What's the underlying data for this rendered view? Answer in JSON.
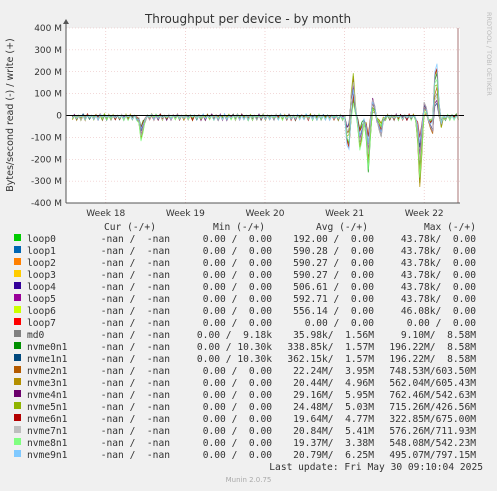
{
  "chart_data": {
    "type": "line",
    "title": "Throughput per device - by month",
    "ylabel": "Bytes/second read (-) / write (+)",
    "watermark": "RRDTOOL / TOBI OETIKER",
    "ylim": [
      -400,
      400
    ],
    "y_unit": "M",
    "y_ticks": [
      "-400 M",
      "-300 M",
      "-200 M",
      "-100 M",
      "0",
      "100 M",
      "200 M",
      "300 M",
      "400 M"
    ],
    "y_tick_values": [
      -400,
      -300,
      -200,
      -100,
      0,
      100,
      200,
      300,
      400
    ],
    "x_ticks": [
      "Week 18",
      "Week 19",
      "Week 20",
      "Week 21",
      "Week 22"
    ],
    "xlim": [
      17.5,
      22.45
    ],
    "x_tick_values": [
      18,
      19,
      20,
      21,
      22
    ],
    "grid": true,
    "legend_placement": "bottom",
    "colors": {
      "background": "#f0f0f0",
      "plot_bg": "#ffffff",
      "grid": "#e6b4b4",
      "axis": "#555555",
      "zero_line": "#000000",
      "now_line": "#aa7777"
    },
    "series": [
      {
        "name": "loop0",
        "color": "#00cc00"
      },
      {
        "name": "loop1",
        "color": "#0066b3"
      },
      {
        "name": "loop2",
        "color": "#ff8000"
      },
      {
        "name": "loop3",
        "color": "#ffcc00"
      },
      {
        "name": "loop4",
        "color": "#330099"
      },
      {
        "name": "loop5",
        "color": "#990099"
      },
      {
        "name": "loop6",
        "color": "#ccff00"
      },
      {
        "name": "loop7",
        "color": "#ff0000"
      },
      {
        "name": "md0",
        "color": "#808080"
      },
      {
        "name": "nvme0n1",
        "color": "#008f00"
      },
      {
        "name": "nvme1n1",
        "color": "#00487d"
      },
      {
        "name": "nvme2n1",
        "color": "#b35a00"
      },
      {
        "name": "nvme3n1",
        "color": "#b38f00"
      },
      {
        "name": "nvme4n1",
        "color": "#6b006b"
      },
      {
        "name": "nvme5n1",
        "color": "#8fb300"
      },
      {
        "name": "nvme6n1",
        "color": "#b30000"
      },
      {
        "name": "nvme7n1",
        "color": "#bebebe"
      },
      {
        "name": "nvme8n1",
        "color": "#80ff80"
      },
      {
        "name": "nvme9n1",
        "color": "#80c9ff"
      }
    ],
    "spikes": [
      {
        "x": 18.45,
        "y": -125
      },
      {
        "x": 21.05,
        "y": -200
      },
      {
        "x": 21.1,
        "y": 240
      },
      {
        "x": 21.2,
        "y": -180
      },
      {
        "x": 21.3,
        "y": -250
      },
      {
        "x": 21.35,
        "y": 100
      },
      {
        "x": 21.45,
        "y": -100
      },
      {
        "x": 21.95,
        "y": -350
      },
      {
        "x": 22.0,
        "y": 80
      },
      {
        "x": 22.1,
        "y": -100
      },
      {
        "x": 22.15,
        "y": 330
      },
      {
        "x": 22.2,
        "y": -60
      }
    ]
  },
  "legend": {
    "headers": {
      "cur": "Cur (-/+)",
      "min": "Min (-/+)",
      "avg": "Avg (-/+)",
      "max": "Max (-/+)"
    },
    "rows": [
      {
        "name": "loop0",
        "cur": "-nan /  -nan",
        "min": "0.00 /  0.00",
        "avg": "192.00 /  0.00",
        "max": "43.78k/  0.00"
      },
      {
        "name": "loop1",
        "cur": "-nan /  -nan",
        "min": "0.00 /  0.00",
        "avg": "590.28 /  0.00",
        "max": "43.78k/  0.00"
      },
      {
        "name": "loop2",
        "cur": "-nan /  -nan",
        "min": "0.00 /  0.00",
        "avg": "590.27 /  0.00",
        "max": "43.78k/  0.00"
      },
      {
        "name": "loop3",
        "cur": "-nan /  -nan",
        "min": "0.00 /  0.00",
        "avg": "590.27 /  0.00",
        "max": "43.78k/  0.00"
      },
      {
        "name": "loop4",
        "cur": "-nan /  -nan",
        "min": "0.00 /  0.00",
        "avg": "506.61 /  0.00",
        "max": "43.78k/  0.00"
      },
      {
        "name": "loop5",
        "cur": "-nan /  -nan",
        "min": "0.00 /  0.00",
        "avg": "592.71 /  0.00",
        "max": "43.78k/  0.00"
      },
      {
        "name": "loop6",
        "cur": "-nan /  -nan",
        "min": "0.00 /  0.00",
        "avg": "556.14 /  0.00",
        "max": "46.08k/  0.00"
      },
      {
        "name": "loop7",
        "cur": "-nan /  -nan",
        "min": "0.00 /  0.00",
        "avg": "0.00 /  0.00",
        "max": "0.00 /  0.00"
      },
      {
        "name": "md0",
        "cur": "-nan /  -nan",
        "min": "0.00 /  9.18k",
        "avg": "35.98k/  1.56M",
        "max": "9.10M/  8.58M"
      },
      {
        "name": "nvme0n1",
        "cur": "-nan /  -nan",
        "min": "0.00 / 10.30k",
        "avg": "338.85k/  1.57M",
        "max": "196.22M/  8.58M"
      },
      {
        "name": "nvme1n1",
        "cur": "-nan /  -nan",
        "min": "0.00 / 10.30k",
        "avg": "362.15k/  1.57M",
        "max": "196.22M/  8.58M"
      },
      {
        "name": "nvme2n1",
        "cur": "-nan /  -nan",
        "min": "0.00 /  0.00",
        "avg": "22.24M/  3.95M",
        "max": "748.53M/603.50M"
      },
      {
        "name": "nvme3n1",
        "cur": "-nan /  -nan",
        "min": "0.00 /  0.00",
        "avg": "20.44M/  4.96M",
        "max": "562.04M/605.43M"
      },
      {
        "name": "nvme4n1",
        "cur": "-nan /  -nan",
        "min": "0.00 /  0.00",
        "avg": "29.16M/  5.95M",
        "max": "762.46M/542.63M"
      },
      {
        "name": "nvme5n1",
        "cur": "-nan /  -nan",
        "min": "0.00 /  0.00",
        "avg": "24.48M/  5.03M",
        "max": "715.26M/426.56M"
      },
      {
        "name": "nvme6n1",
        "cur": "-nan /  -nan",
        "min": "0.00 /  0.00",
        "avg": "19.64M/  4.77M",
        "max": "322.85M/675.00M"
      },
      {
        "name": "nvme7n1",
        "cur": "-nan /  -nan",
        "min": "0.00 /  0.00",
        "avg": "20.84M/  5.41M",
        "max": "576.26M/711.93M"
      },
      {
        "name": "nvme8n1",
        "cur": "-nan /  -nan",
        "min": "0.00 /  0.00",
        "avg": "19.37M/  3.38M",
        "max": "548.08M/542.23M"
      },
      {
        "name": "nvme9n1",
        "cur": "-nan /  -nan",
        "min": "0.00 /  0.00",
        "avg": "20.79M/  6.25M",
        "max": "495.07M/797.15M"
      }
    ]
  },
  "last_update": "Last update: Fri May 30 09:10:04 2025",
  "footer": "Munin 2.0.75"
}
